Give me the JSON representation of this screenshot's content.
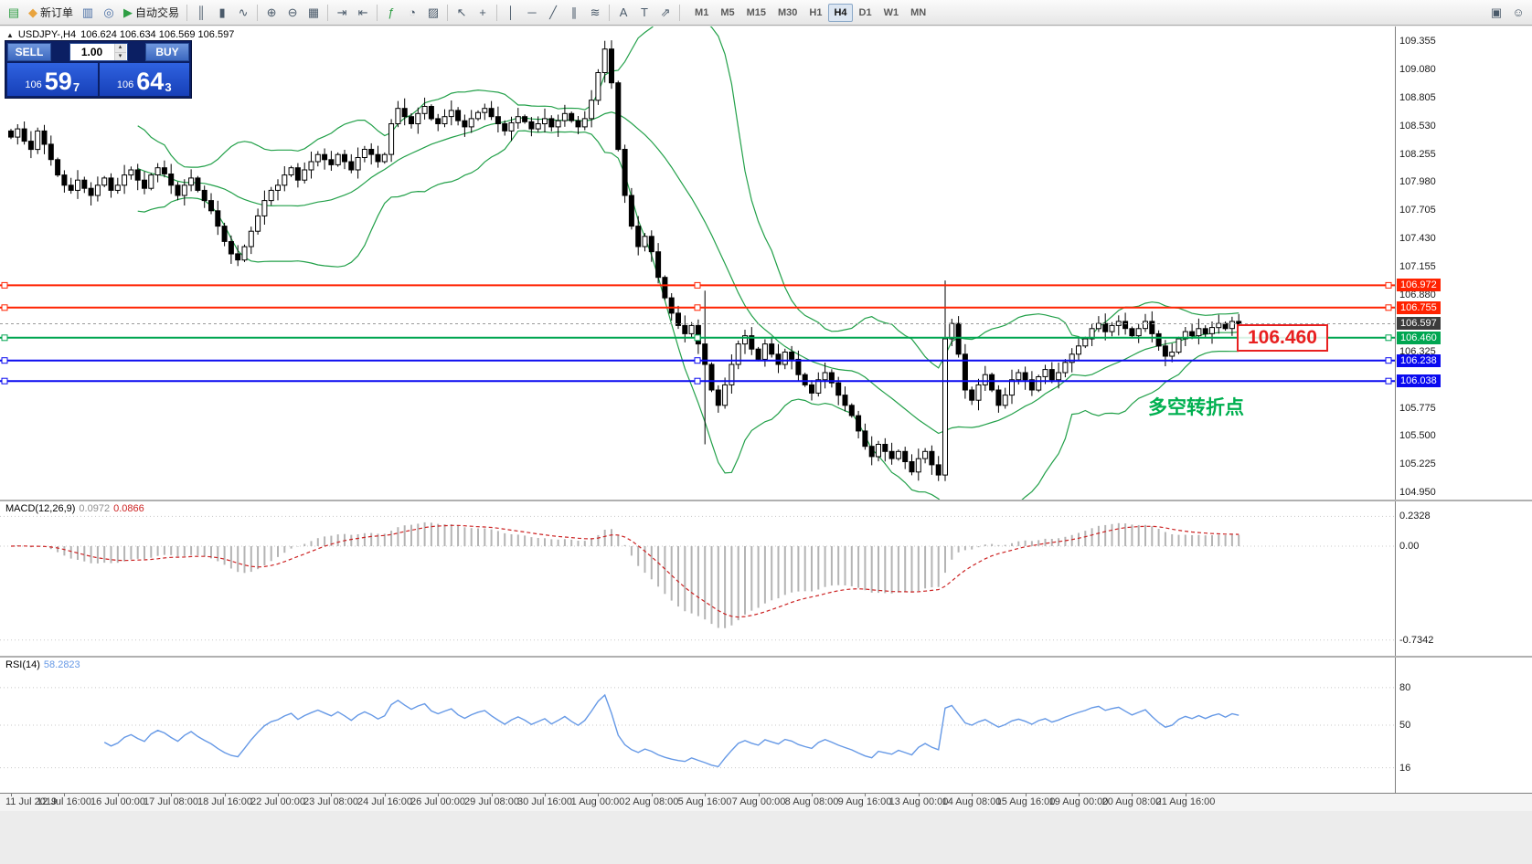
{
  "toolbar": {
    "items": [
      {
        "type": "btn",
        "name": "chart-window-icon",
        "glyph": "▤",
        "color": "#2f9e44"
      },
      {
        "type": "btn",
        "name": "new-order-button",
        "glyph": "◆",
        "color": "#e8a33d",
        "label": "新订单"
      },
      {
        "type": "btn",
        "name": "market-watch-icon",
        "glyph": "▥",
        "color": "#4a6fa5"
      },
      {
        "type": "btn",
        "name": "navigator-icon",
        "glyph": "◎",
        "color": "#4a6fa5"
      },
      {
        "type": "btn",
        "name": "autotrading-button",
        "glyph": "▶",
        "color": "#2f9e44",
        "label": "自动交易"
      },
      {
        "type": "sep"
      },
      {
        "type": "btn",
        "name": "bar-chart-icon",
        "glyph": "║"
      },
      {
        "type": "btn",
        "name": "candlestick-chart-icon",
        "glyph": "▮"
      },
      {
        "type": "btn",
        "name": "line-chart-icon",
        "glyph": "∿"
      },
      {
        "type": "sep"
      },
      {
        "type": "btn",
        "name": "zoom-in-icon",
        "glyph": "⊕"
      },
      {
        "type": "btn",
        "name": "zoom-out-icon",
        "glyph": "⊖"
      },
      {
        "type": "btn",
        "name": "grid-icon",
        "glyph": "▦"
      },
      {
        "type": "sep"
      },
      {
        "type": "btn",
        "name": "auto-scroll-icon",
        "glyph": "⇥"
      },
      {
        "type": "btn",
        "name": "chart-shift-icon",
        "glyph": "⇤"
      },
      {
        "type": "sep"
      },
      {
        "type": "btn",
        "name": "indicators-icon",
        "glyph": "ƒ",
        "color": "#2f9e44"
      },
      {
        "type": "btn",
        "name": "periods-icon",
        "glyph": "◔"
      },
      {
        "type": "btn",
        "name": "templates-icon",
        "glyph": "▨"
      },
      {
        "type": "sep"
      },
      {
        "type": "btn",
        "name": "cursor-icon",
        "glyph": "↖"
      },
      {
        "type": "btn",
        "name": "crosshair-icon",
        "glyph": "+"
      },
      {
        "type": "sep"
      },
      {
        "type": "btn",
        "name": "vertical-line-icon",
        "glyph": "│"
      },
      {
        "type": "btn",
        "name": "horizontal-line-icon",
        "glyph": "─"
      },
      {
        "type": "btn",
        "name": "trendline-icon",
        "glyph": "╱"
      },
      {
        "type": "btn",
        "name": "channel-icon",
        "glyph": "∥"
      },
      {
        "type": "btn",
        "name": "fibonacci-icon",
        "glyph": "≋"
      },
      {
        "type": "sep"
      },
      {
        "type": "btn",
        "name": "text-icon",
        "glyph": "A"
      },
      {
        "type": "btn",
        "name": "text-label-icon",
        "glyph": "T"
      },
      {
        "type": "btn",
        "name": "arrows-icon",
        "glyph": "⇗"
      },
      {
        "type": "sep"
      }
    ],
    "timeframes": [
      {
        "label": "M1"
      },
      {
        "label": "M5"
      },
      {
        "label": "M15"
      },
      {
        "label": "M30"
      },
      {
        "label": "H1"
      },
      {
        "label": "H4",
        "active": true
      },
      {
        "label": "D1"
      },
      {
        "label": "W1"
      },
      {
        "label": "MN"
      }
    ],
    "right_items": [
      {
        "name": "layout-icon",
        "glyph": "▣"
      },
      {
        "name": "smiley-icon",
        "glyph": "☺"
      }
    ]
  },
  "chart_header": {
    "icon": "▲",
    "symbol": "USDJPY-,H4",
    "ohlc": "106.624 106.634 106.569 106.597"
  },
  "trade_panel": {
    "sell_label": "SELL",
    "buy_label": "BUY",
    "volume": "1.00",
    "volume_up": "▴",
    "volume_down": "▾",
    "sell_price": {
      "prefix": "106",
      "main": "59",
      "sup": "7"
    },
    "buy_price": {
      "prefix": "106",
      "main": "64",
      "sup": "3"
    }
  },
  "annotations": {
    "price_box": "106.460",
    "turning_point": "多空转折点"
  },
  "price_axis": {
    "plain": [
      "109.355",
      "109.080",
      "108.805",
      "108.530",
      "108.255",
      "107.980",
      "107.705",
      "107.430",
      "107.155",
      "106.880",
      "106.325",
      "105.775",
      "105.500",
      "105.225",
      "104.950"
    ],
    "highlighted": [
      {
        "value": "106.972",
        "bg": "#ff2200"
      },
      {
        "value": "106.755",
        "bg": "#ff2200"
      },
      {
        "value": "106.597",
        "bg": "#3c3c3c"
      },
      {
        "value": "106.460",
        "bg": "#00a651"
      },
      {
        "value": "106.238",
        "bg": "#0a0af0"
      },
      {
        "value": "106.038",
        "bg": "#0a0af0"
      }
    ]
  },
  "panels": {
    "macd": {
      "title": "MACD(12,26,9)",
      "value_main": "0.0972",
      "value_signal": "0.0866",
      "scale": [
        "0.2328",
        "0.00",
        "-0.7342"
      ]
    },
    "rsi": {
      "title": "RSI(14)",
      "value": "58.2823",
      "levels": [
        80,
        50,
        16
      ]
    }
  },
  "time_axis": [
    "11 Jul 2019",
    "12 Jul 16:00",
    "16 Jul 00:00",
    "17 Jul 08:00",
    "18 Jul 16:00",
    "22 Jul 00:00",
    "23 Jul 08:00",
    "24 Jul 16:00",
    "26 Jul 00:00",
    "29 Jul 08:00",
    "30 Jul 16:00",
    "1 Aug 00:00",
    "2 Aug 08:00",
    "5 Aug 16:00",
    "7 Aug 00:00",
    "8 Aug 08:00",
    "9 Aug 16:00",
    "13 Aug 00:00",
    "14 Aug 08:00",
    "15 Aug 16:00",
    "19 Aug 00:00",
    "20 Aug 08:00",
    "21 Aug 16:00"
  ],
  "chart_data": {
    "type": "candlestick",
    "symbol": "USDJPY",
    "timeframe": "H4",
    "price_range": [
      104.88,
      109.5
    ],
    "current_price": 106.597,
    "candle_up_color": "#ffffff",
    "candle_down_color": "#000000",
    "closes": [
      108.42,
      108.5,
      108.38,
      108.3,
      108.48,
      108.35,
      108.2,
      108.05,
      107.95,
      107.9,
      108.0,
      107.92,
      107.85,
      107.95,
      108.02,
      107.9,
      107.95,
      108.05,
      108.1,
      108.0,
      107.92,
      108.05,
      108.12,
      108.06,
      107.95,
      107.85,
      107.95,
      108.02,
      107.9,
      107.8,
      107.7,
      107.55,
      107.4,
      107.28,
      107.22,
      107.35,
      107.5,
      107.65,
      107.8,
      107.9,
      107.95,
      108.05,
      108.12,
      108.0,
      108.1,
      108.18,
      108.25,
      108.2,
      108.15,
      108.25,
      108.18,
      108.1,
      108.22,
      108.3,
      108.25,
      108.18,
      108.25,
      108.55,
      108.7,
      108.62,
      108.55,
      108.65,
      108.72,
      108.6,
      108.55,
      108.62,
      108.68,
      108.58,
      108.52,
      108.6,
      108.66,
      108.7,
      108.62,
      108.55,
      108.48,
      108.56,
      108.62,
      108.57,
      108.5,
      108.55,
      108.6,
      108.52,
      108.58,
      108.65,
      108.58,
      108.52,
      108.6,
      108.78,
      109.05,
      109.28,
      108.95,
      108.3,
      107.85,
      107.55,
      107.35,
      107.45,
      107.3,
      107.05,
      106.85,
      106.7,
      106.58,
      106.5,
      106.58,
      106.4,
      106.2,
      105.95,
      105.8,
      106.0,
      106.2,
      106.4,
      106.48,
      106.35,
      106.25,
      106.4,
      106.3,
      106.2,
      106.32,
      106.25,
      106.1,
      106.0,
      105.92,
      106.05,
      106.12,
      106.02,
      105.9,
      105.8,
      105.7,
      105.55,
      105.4,
      105.3,
      105.42,
      105.35,
      105.28,
      105.35,
      105.25,
      105.15,
      105.28,
      105.35,
      105.22,
      105.12,
      106.45,
      106.6,
      106.3,
      105.95,
      105.85,
      106.0,
      106.1,
      105.95,
      105.8,
      105.9,
      106.05,
      106.12,
      106.05,
      105.95,
      106.08,
      106.15,
      106.05,
      106.12,
      106.22,
      106.3,
      106.38,
      106.45,
      106.55,
      106.6,
      106.52,
      106.58,
      106.62,
      106.55,
      106.48,
      106.55,
      106.62,
      106.5,
      106.38,
      106.28,
      106.32,
      106.45,
      106.52,
      106.48,
      106.55,
      106.5,
      106.56,
      106.6,
      106.55,
      106.62,
      106.597
    ],
    "overrides": [
      {
        "idx": 89,
        "high": 109.36
      },
      {
        "idx": 104,
        "high": 106.92,
        "low": 105.42
      },
      {
        "idx": 140,
        "open": 105.12,
        "close": 106.45,
        "high": 107.02,
        "low": 105.06
      }
    ],
    "indicators": {
      "bollinger": {
        "period": 20,
        "deviation": 2,
        "color": "#22a049"
      },
      "macd": {
        "fast": 12,
        "slow": 26,
        "signal": 9,
        "hist_color": "#b4b4b4",
        "signal_color": "#cc2222",
        "range": [
          -0.7342,
          0.2328
        ]
      },
      "rsi": {
        "period": 14,
        "color": "#6699e6",
        "levels": [
          80,
          50,
          16
        ],
        "range": [
          0,
          100
        ]
      }
    },
    "h_lines": [
      {
        "price": 106.972,
        "color": "#ff2200",
        "label": "106.972"
      },
      {
        "price": 106.755,
        "color": "#ff2200",
        "label": "106.755"
      },
      {
        "price": 106.46,
        "color": "#00a651",
        "label": "106.460"
      },
      {
        "price": 106.238,
        "color": "#0a0af0",
        "label": "106.238"
      },
      {
        "price": 106.038,
        "color": "#0a0af0",
        "label": "106.038"
      }
    ]
  }
}
